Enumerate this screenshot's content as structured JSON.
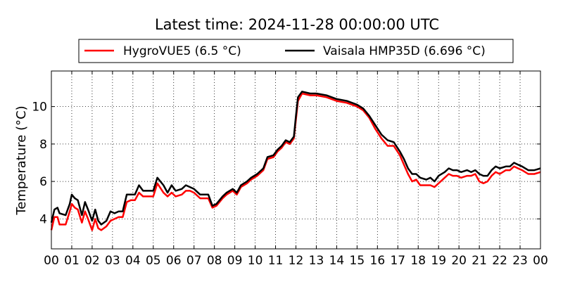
{
  "chart_data": {
    "type": "line",
    "title": "Latest time: 2024-11-28 00:00:00 UTC",
    "xlabel": "",
    "ylabel": "Temperature (°C)",
    "xlim": [
      0,
      24
    ],
    "ylim": [
      2.4,
      11.9
    ],
    "grid": true,
    "legend_placement": "top-center-outside",
    "x_ticks": [
      0,
      1,
      2,
      3,
      4,
      5,
      6,
      7,
      8,
      9,
      10,
      11,
      12,
      13,
      14,
      15,
      16,
      17,
      18,
      19,
      20,
      21,
      22,
      23,
      24
    ],
    "x_tick_labels": [
      "00",
      "01",
      "02",
      "03",
      "04",
      "05",
      "06",
      "07",
      "08",
      "09",
      "10",
      "11",
      "12",
      "13",
      "14",
      "15",
      "16",
      "17",
      "18",
      "19",
      "20",
      "21",
      "22",
      "23",
      "00"
    ],
    "y_ticks": [
      4,
      6,
      8,
      10
    ],
    "y_tick_labels": [
      "4",
      "6",
      "8",
      "10"
    ],
    "x_hours": [
      0,
      0.15,
      0.3,
      0.4,
      0.7,
      0.9,
      1.0,
      1.15,
      1.3,
      1.5,
      1.65,
      1.8,
      2.0,
      2.15,
      2.3,
      2.45,
      2.7,
      2.9,
      3.1,
      3.3,
      3.5,
      3.7,
      3.9,
      4.1,
      4.3,
      4.5,
      4.8,
      5.0,
      5.2,
      5.5,
      5.7,
      5.9,
      6.1,
      6.4,
      6.6,
      6.8,
      7.0,
      7.3,
      7.7,
      7.9,
      8.1,
      8.4,
      8.6,
      8.9,
      9.1,
      9.3,
      9.6,
      9.8,
      10.1,
      10.4,
      10.6,
      10.9,
      11.1,
      11.3,
      11.5,
      11.7,
      11.9,
      12.0,
      12.1,
      12.3,
      12.7,
      13.0,
      13.5,
      14.0,
      14.5,
      15.0,
      15.3,
      15.6,
      15.9,
      16.2,
      16.5,
      16.8,
      17.1,
      17.3,
      17.5,
      17.7,
      17.9,
      18.1,
      18.4,
      18.6,
      18.8,
      19.0,
      19.3,
      19.5,
      19.7,
      19.9,
      20.1,
      20.4,
      20.6,
      20.8,
      21.0,
      21.2,
      21.4,
      21.6,
      21.8,
      22.0,
      22.3,
      22.5,
      22.7,
      22.9,
      23.1,
      23.4,
      23.7,
      24.0
    ],
    "series": [
      {
        "name": "HygroVUE5 (6.5 °C)",
        "color": "#ff0000",
        "values": [
          3.4,
          4.1,
          4.1,
          3.7,
          3.7,
          4.4,
          4.8,
          4.6,
          4.5,
          3.8,
          4.4,
          4.0,
          3.4,
          4.0,
          3.5,
          3.4,
          3.6,
          3.9,
          4.0,
          4.1,
          4.1,
          4.9,
          5.0,
          5.0,
          5.4,
          5.2,
          5.2,
          5.2,
          5.9,
          5.4,
          5.2,
          5.4,
          5.2,
          5.3,
          5.5,
          5.5,
          5.4,
          5.1,
          5.1,
          4.6,
          4.7,
          5.1,
          5.3,
          5.5,
          5.3,
          5.7,
          5.9,
          6.1,
          6.3,
          6.6,
          7.2,
          7.3,
          7.6,
          7.8,
          8.1,
          8.0,
          8.3,
          9.3,
          10.3,
          10.7,
          10.6,
          10.6,
          10.5,
          10.3,
          10.2,
          10.0,
          9.8,
          9.4,
          8.8,
          8.3,
          7.9,
          7.9,
          7.4,
          6.9,
          6.4,
          6.0,
          6.1,
          5.8,
          5.8,
          5.8,
          5.7,
          5.9,
          6.2,
          6.4,
          6.3,
          6.3,
          6.2,
          6.3,
          6.3,
          6.4,
          6.0,
          5.9,
          6.0,
          6.3,
          6.5,
          6.4,
          6.6,
          6.6,
          6.8,
          6.7,
          6.6,
          6.4,
          6.4,
          6.5
        ]
      },
      {
        "name": "Vaisala HMP35D (6.696 °C)",
        "color": "#000000",
        "values": [
          3.8,
          4.5,
          4.6,
          4.3,
          4.2,
          4.8,
          5.3,
          5.1,
          5.0,
          4.2,
          4.9,
          4.5,
          3.9,
          4.5,
          3.9,
          3.7,
          3.9,
          4.4,
          4.3,
          4.4,
          4.4,
          5.3,
          5.3,
          5.3,
          5.8,
          5.5,
          5.5,
          5.5,
          6.2,
          5.8,
          5.4,
          5.8,
          5.5,
          5.6,
          5.8,
          5.7,
          5.6,
          5.3,
          5.3,
          4.7,
          4.8,
          5.2,
          5.4,
          5.6,
          5.4,
          5.8,
          6.0,
          6.2,
          6.4,
          6.7,
          7.3,
          7.4,
          7.7,
          7.9,
          8.2,
          8.1,
          8.4,
          9.5,
          10.5,
          10.8,
          10.7,
          10.7,
          10.6,
          10.4,
          10.3,
          10.1,
          9.9,
          9.5,
          9.0,
          8.5,
          8.2,
          8.1,
          7.6,
          7.2,
          6.7,
          6.4,
          6.4,
          6.2,
          6.1,
          6.2,
          6.0,
          6.3,
          6.5,
          6.7,
          6.6,
          6.6,
          6.5,
          6.6,
          6.5,
          6.6,
          6.4,
          6.3,
          6.3,
          6.6,
          6.8,
          6.7,
          6.8,
          6.8,
          7.0,
          6.9,
          6.8,
          6.6,
          6.6,
          6.7
        ]
      }
    ]
  }
}
